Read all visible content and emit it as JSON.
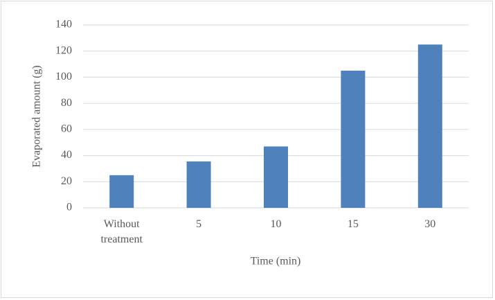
{
  "chart_data": {
    "type": "bar",
    "x_label": "Time (min)",
    "y_label": "Evaporated amount (g)",
    "categories": [
      "Without treatment",
      "5",
      "10",
      "15",
      "30"
    ],
    "values": [
      25,
      35.5,
      47,
      105,
      125
    ],
    "color": "#4f81bd",
    "ylim": [
      0,
      140
    ],
    "yticks": [
      0,
      20,
      40,
      60,
      80,
      100,
      120,
      140
    ],
    "grid": true
  }
}
